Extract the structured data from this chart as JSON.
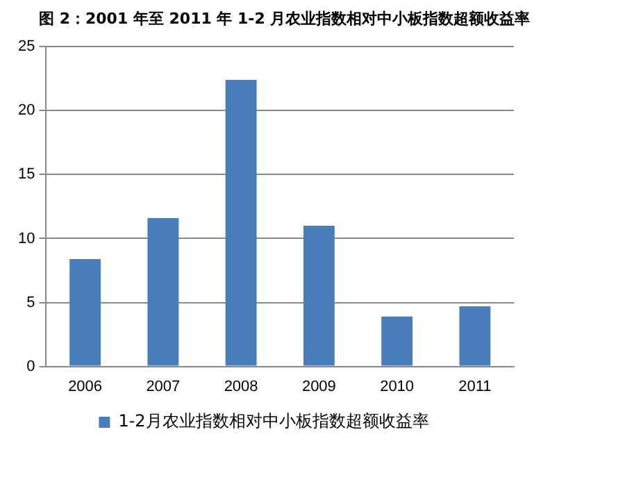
{
  "chart_data": {
    "type": "bar",
    "title": "图 2：2001 年至 2011 年 1-2 月农业指数相对中小板指数超额收益率",
    "categories": [
      "2006",
      "2007",
      "2008",
      "2009",
      "2010",
      "2011"
    ],
    "series": [
      {
        "name": "1-2月农业指数相对中小板指数超额收益率",
        "color": "#4a7ebb",
        "values": [
          8.4,
          11.6,
          22.4,
          11.0,
          3.9,
          4.7
        ]
      }
    ],
    "ylim": [
      0,
      25
    ],
    "yticks": [
      0,
      5,
      10,
      15,
      20,
      25
    ],
    "grid": "y",
    "legend": "bottom"
  }
}
